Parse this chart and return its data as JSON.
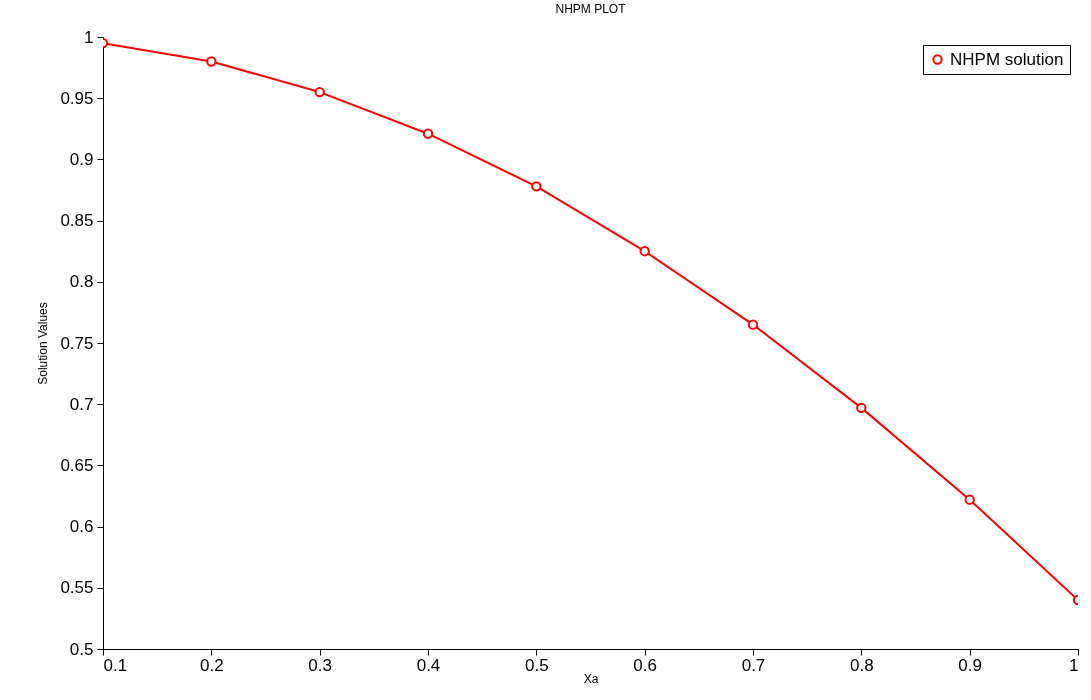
{
  "chart_data": {
    "type": "line",
    "title": "NHPM PLOT",
    "xlabel": "Xa",
    "ylabel": "Solution Values",
    "x": [
      0.1,
      0.2,
      0.3,
      0.4,
      0.5,
      0.6,
      0.7,
      0.8,
      0.9,
      1
    ],
    "series": [
      {
        "name": "NHPM solution",
        "color": "#ff0000",
        "values": [
          0.995,
          0.98,
          0.955,
          0.921,
          0.878,
          0.825,
          0.765,
          0.697,
          0.622,
          0.54
        ]
      }
    ],
    "xlim": [
      0.1,
      1
    ],
    "xticks": [
      0.1,
      0.2,
      0.3,
      0.4,
      0.5,
      0.6,
      0.7,
      0.8,
      0.9,
      1
    ],
    "ylim": [
      0.5,
      1
    ],
    "yticks": [
      0.5,
      0.55,
      0.6,
      0.65,
      0.7,
      0.75,
      0.8,
      0.85,
      0.9,
      0.95,
      1
    ],
    "grid": false,
    "legend": "top right",
    "marker": "circle",
    "line_style": "solid"
  }
}
